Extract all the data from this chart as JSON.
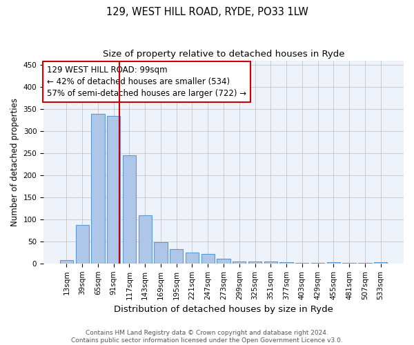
{
  "title": "129, WEST HILL ROAD, RYDE, PO33 1LW",
  "subtitle": "Size of property relative to detached houses in Ryde",
  "xlabel": "Distribution of detached houses by size in Ryde",
  "ylabel": "Number of detached properties",
  "footnote1": "Contains HM Land Registry data © Crown copyright and database right 2024.",
  "footnote2": "Contains public sector information licensed under the Open Government Licence v3.0.",
  "bin_labels": [
    "13sqm",
    "39sqm",
    "65sqm",
    "91sqm",
    "117sqm",
    "143sqm",
    "169sqm",
    "195sqm",
    "221sqm",
    "247sqm",
    "273sqm",
    "299sqm",
    "325sqm",
    "351sqm",
    "377sqm",
    "403sqm",
    "429sqm",
    "455sqm",
    "481sqm",
    "507sqm",
    "533sqm"
  ],
  "bar_values": [
    7,
    88,
    340,
    335,
    245,
    110,
    49,
    32,
    25,
    21,
    10,
    5,
    5,
    4,
    3,
    2,
    1,
    3,
    1,
    1,
    3
  ],
  "bar_color": "#aec6e8",
  "bar_edgecolor": "#5b9bd5",
  "bar_linewidth": 0.8,
  "vline_color": "#cc0000",
  "vline_linewidth": 1.5,
  "annotation_line1": "129 WEST HILL ROAD: 99sqm",
  "annotation_line2": "← 42% of detached houses are smaller (534)",
  "annotation_line3": "57% of semi-detached houses are larger (722) →",
  "annotation_box_edgecolor": "#cc0000",
  "annotation_box_facecolor": "white",
  "annotation_fontsize": 8.5,
  "ylim": [
    0,
    460
  ],
  "yticks": [
    0,
    50,
    100,
    150,
    200,
    250,
    300,
    350,
    400,
    450
  ],
  "grid_color": "#cccccc",
  "background_color": "#eef2fb",
  "title_fontsize": 10.5,
  "subtitle_fontsize": 9.5,
  "xlabel_fontsize": 9.5,
  "ylabel_fontsize": 8.5,
  "tick_fontsize": 7.5,
  "footnote_fontsize": 6.5
}
